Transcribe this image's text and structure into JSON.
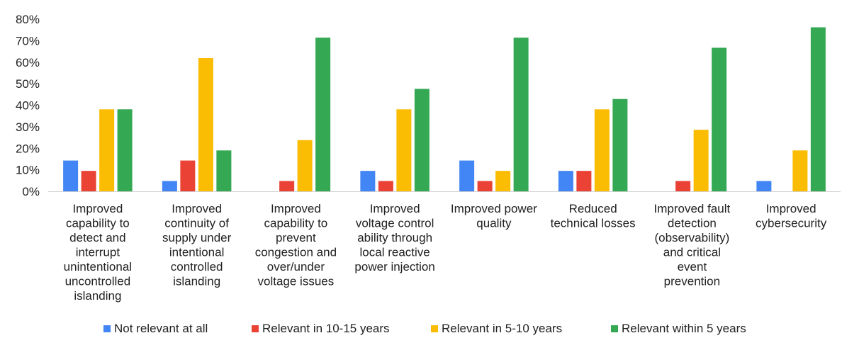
{
  "chart_data": {
    "type": "bar",
    "title": "",
    "xlabel": "",
    "ylabel": "",
    "ylim": [
      0,
      0.8
    ],
    "yticks": [
      "0%",
      "10%",
      "20%",
      "30%",
      "40%",
      "50%",
      "60%",
      "70%",
      "80%"
    ],
    "grid": false,
    "legend_position": "bottom",
    "categories": [
      [
        "Improved",
        "capability to",
        "detect and",
        "interrupt",
        "unintentional",
        "uncontrolled",
        "islanding"
      ],
      [
        "Improved",
        "continuity of",
        "supply under",
        "intentional",
        "controlled",
        "islanding"
      ],
      [
        "Improved",
        "capability to",
        "prevent",
        "congestion and",
        "over/under",
        "voltage issues"
      ],
      [
        "Improved",
        "voltage control",
        "ability through",
        "local reactive",
        "power injection"
      ],
      [
        "Improved power",
        "quality"
      ],
      [
        "Reduced",
        "technical losses"
      ],
      [
        "Improved fault",
        "detection",
        "(observability)",
        "and critical",
        "event",
        "prevention"
      ],
      [
        "Improved",
        "cybersecurity"
      ]
    ],
    "series": [
      {
        "name": "Not relevant at all",
        "color": "#4285F4",
        "values": [
          0.143,
          0.048,
          0.0,
          0.095,
          0.143,
          0.095,
          0.0,
          0.048
        ]
      },
      {
        "name": "Relevant in 10-15 years",
        "color": "#EA4335",
        "values": [
          0.095,
          0.143,
          0.048,
          0.048,
          0.048,
          0.095,
          0.048,
          0.0
        ]
      },
      {
        "name": "Relevant in 5-10 years",
        "color": "#FBBC04",
        "values": [
          0.381,
          0.619,
          0.238,
          0.381,
          0.095,
          0.381,
          0.286,
          0.19
        ]
      },
      {
        "name": "Relevant within 5 years",
        "color": "#34A853",
        "values": [
          0.381,
          0.19,
          0.714,
          0.476,
          0.714,
          0.429,
          0.667,
          0.762
        ]
      }
    ]
  }
}
